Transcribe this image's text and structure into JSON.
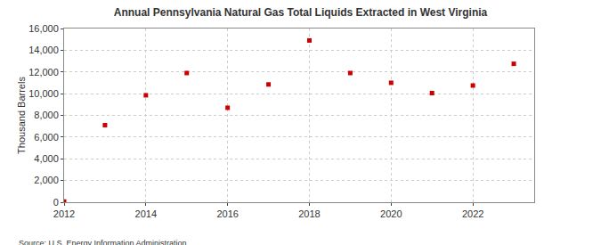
{
  "chart_data": {
    "type": "scatter",
    "title": "Annual Pennsylvania Natural Gas Total Liquids Extracted in West Virginia",
    "y_label": "Thousand Barrels",
    "annotations": [
      {
        "text": "Source: U.S. Energy Information Administration"
      }
    ],
    "x": [
      2012,
      2013,
      2014,
      2015,
      2016,
      2017,
      2018,
      2019,
      2020,
      2021,
      2022,
      2023
    ],
    "values": [
      70,
      7100,
      9850,
      11900,
      8700,
      10850,
      14900,
      11900,
      11000,
      10050,
      10750,
      12750
    ],
    "color": "#cc0000",
    "marker": "square",
    "xlim": [
      2012,
      2023.5
    ],
    "xticks": [
      2012,
      2014,
      2016,
      2018,
      2020,
      2022
    ],
    "ylim": [
      0,
      16000
    ],
    "yticks": [
      0,
      {
        "value": 2000,
        "label": "2,000"
      },
      {
        "value": 4000,
        "label": "4,000"
      },
      {
        "value": 6000,
        "label": "6,000"
      },
      {
        "value": 8000,
        "label": "8,000"
      },
      {
        "value": 10000,
        "label": "10,000"
      },
      {
        "value": 12000,
        "label": "12,000"
      },
      {
        "value": 14000,
        "label": "14,000"
      },
      {
        "value": 16000,
        "label": "16,000"
      }
    ],
    "grid": true
  }
}
